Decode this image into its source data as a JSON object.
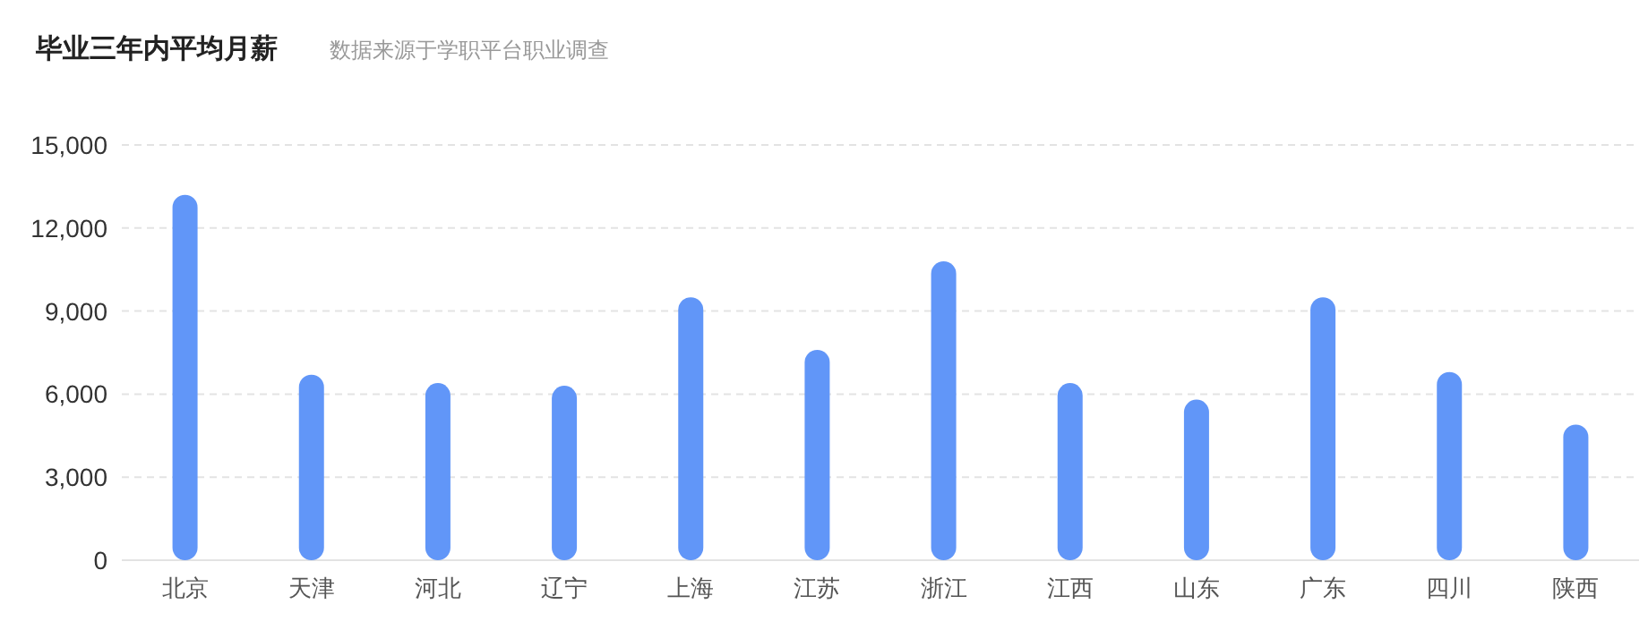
{
  "chart_data": {
    "type": "bar",
    "title": "毕业三年内平均月薪",
    "subtitle": "数据来源于学职平台职业调查",
    "categories": [
      "北京",
      "天津",
      "河北",
      "辽宁",
      "上海",
      "江苏",
      "浙江",
      "江西",
      "山东",
      "广东",
      "四川",
      "陕西"
    ],
    "values": [
      13200,
      6700,
      6400,
      6300,
      9500,
      7600,
      10800,
      6400,
      5800,
      9500,
      6800,
      4900
    ],
    "color": "#6196f8",
    "ylim": [
      0,
      15000
    ],
    "yticks": [
      {
        "value": 0,
        "label": "0"
      },
      {
        "value": 3000,
        "label": "3,000"
      },
      {
        "value": 6000,
        "label": "6,000"
      },
      {
        "value": 9000,
        "label": "9,000"
      },
      {
        "value": 12000,
        "label": "12,000"
      },
      {
        "value": 15000,
        "label": "15,000"
      }
    ],
    "grid": "y"
  }
}
